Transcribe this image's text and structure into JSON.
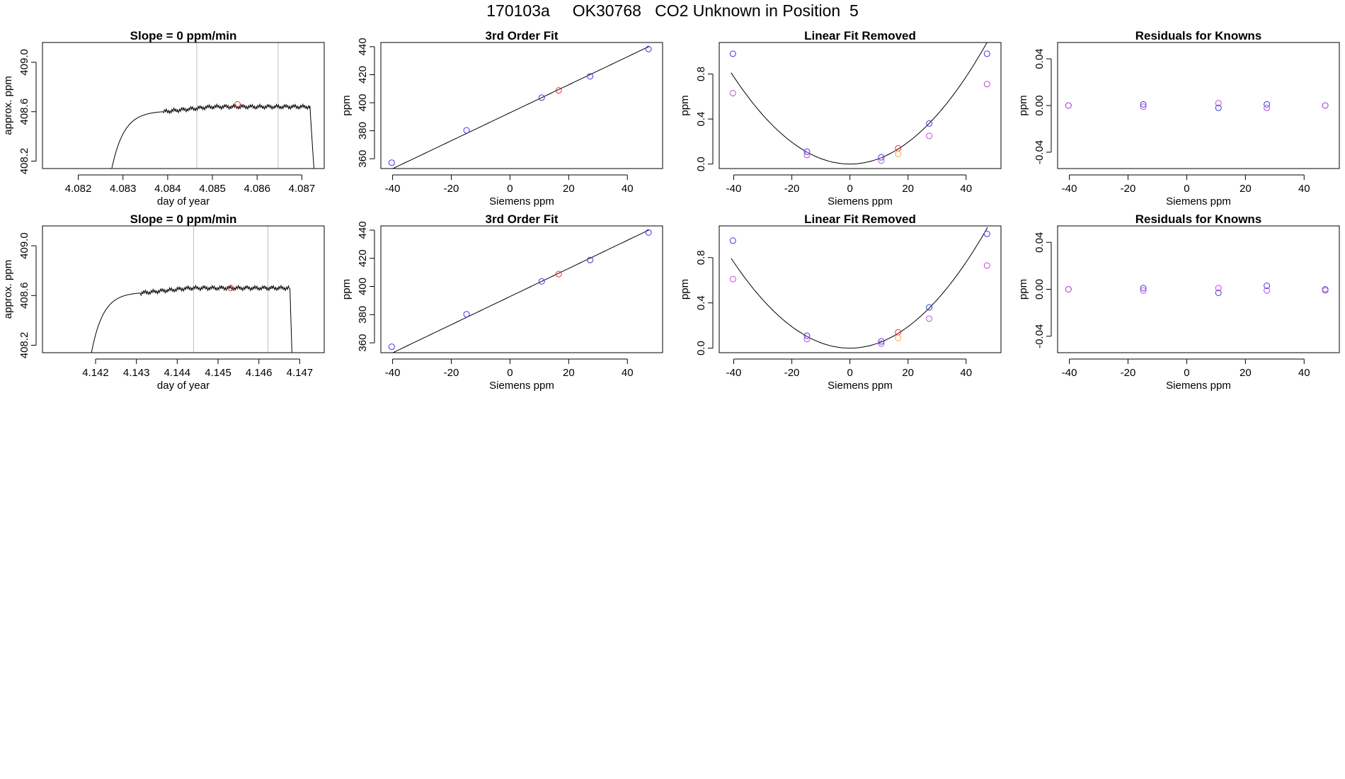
{
  "figure": {
    "title": "170103a     OK30768   CO2 Unknown in Position  5",
    "colors": {
      "line": "#000000",
      "frame": "#000000",
      "vline": "#bebebe",
      "red": "#e8312f",
      "blue": "#3a3adf",
      "violet": "#c14ad8",
      "orange": "#ffa533"
    }
  },
  "chart_data": [
    {
      "type": "line",
      "row": 0,
      "col": 0,
      "title": "Slope =  0  ppm/min",
      "xlabel": "day of year",
      "ylabel": "approx. ppm",
      "xlim": [
        4.0812,
        4.0875
      ],
      "ylim": [
        408.14,
        409.16
      ],
      "xticks": [
        4.082,
        4.083,
        4.084,
        4.085,
        4.086,
        4.087
      ],
      "xtick_labels": [
        "4.082",
        "4.083",
        "4.084",
        "4.085",
        "4.086",
        "4.087"
      ],
      "yticks": [
        408.2,
        408.6,
        409.0
      ],
      "ytick_labels": [
        "408.2",
        "408.6",
        "409.0"
      ],
      "trace": {
        "start": 4.08275,
        "rise_end": 4.0839,
        "end_plateau": 4.08718,
        "end": 4.08727,
        "base": 408.14,
        "level": 408.64,
        "rise_to": 408.6
      },
      "vlines": [
        4.08465,
        4.08647
      ],
      "marker": {
        "x": 4.08556,
        "y": 408.66,
        "color": "red"
      }
    },
    {
      "type": "line",
      "row": 1,
      "col": 0,
      "title": "Slope =  0  ppm/min",
      "xlabel": "day of year",
      "ylabel": "approx. ppm",
      "xlim": [
        4.1407,
        4.1476
      ],
      "ylim": [
        408.14,
        409.16
      ],
      "xticks": [
        4.142,
        4.143,
        4.144,
        4.145,
        4.146,
        4.147
      ],
      "xtick_labels": [
        "4.142",
        "4.143",
        "4.144",
        "4.145",
        "4.146",
        "4.147"
      ],
      "yticks": [
        408.2,
        408.6,
        409.0
      ],
      "ytick_labels": [
        "408.2",
        "408.6",
        "409.0"
      ],
      "trace": {
        "start": 4.1419,
        "rise_end": 4.1431,
        "end_plateau": 4.14676,
        "end": 4.14681,
        "base": 408.14,
        "level": 408.66,
        "rise_to": 408.62
      },
      "vlines": [
        4.1444,
        4.14622
      ],
      "marker": {
        "x": 4.14531,
        "y": 408.66,
        "color": "red"
      }
    },
    {
      "type": "scatter",
      "row": 0,
      "col": 1,
      "title": "3rd Order Fit",
      "xlabel": "Siemens ppm",
      "ylabel": "ppm",
      "xlim": [
        -44,
        52
      ],
      "ylim": [
        353,
        443
      ],
      "xticks": [
        -40,
        -20,
        0,
        20,
        40
      ],
      "xtick_labels": [
        "-40",
        "-20",
        "0",
        "20",
        "40"
      ],
      "yticks": [
        360,
        380,
        400,
        420,
        440
      ],
      "ytick_labels": [
        "360",
        "380",
        "400",
        "420",
        "440"
      ],
      "fit": {
        "kind": "poly",
        "coef": [
          392.84,
          0.9985,
          0,
          0
        ],
        "from": -40.5,
        "to": 47.5
      },
      "series": [
        {
          "color": "blue",
          "x": [
            -40.3,
            -14.8,
            10.8,
            27.3,
            47.2
          ],
          "y": [
            357.2,
            380.3,
            403.6,
            418.8,
            438.3
          ]
        },
        {
          "color": "red",
          "x": [
            16.6
          ],
          "y": [
            408.8
          ]
        }
      ]
    },
    {
      "type": "scatter",
      "row": 1,
      "col": 1,
      "title": "3rd Order Fit",
      "xlabel": "Siemens ppm",
      "ylabel": "ppm",
      "xlim": [
        -44,
        52
      ],
      "ylim": [
        353,
        443
      ],
      "xticks": [
        -40,
        -20,
        0,
        20,
        40
      ],
      "xtick_labels": [
        "-40",
        "-20",
        "0",
        "20",
        "40"
      ],
      "yticks": [
        360,
        380,
        400,
        420,
        440
      ],
      "ytick_labels": [
        "360",
        "380",
        "400",
        "420",
        "440"
      ],
      "fit": {
        "kind": "poly",
        "coef": [
          392.84,
          0.9985,
          0,
          0
        ],
        "from": -40.5,
        "to": 47.5
      },
      "series": [
        {
          "color": "blue",
          "x": [
            -40.3,
            -14.8,
            10.8,
            27.3,
            47.2
          ],
          "y": [
            357.2,
            380.3,
            403.6,
            418.8,
            438.3
          ]
        },
        {
          "color": "red",
          "x": [
            16.6
          ],
          "y": [
            408.8
          ]
        }
      ]
    },
    {
      "type": "scatter",
      "row": 0,
      "col": 2,
      "title": "Linear Fit Removed",
      "xlabel": "Siemens ppm",
      "ylabel": "ppm",
      "xlim": [
        -45,
        52
      ],
      "ylim": [
        -0.04,
        1.08
      ],
      "xticks": [
        -40,
        -20,
        0,
        20,
        40
      ],
      "xtick_labels": [
        "-40",
        "-20",
        "0",
        "20",
        "40"
      ],
      "yticks": [
        0.0,
        0.4,
        0.8
      ],
      "ytick_labels": [
        "0.0",
        "0.4",
        "0.8"
      ],
      "fit": {
        "kind": "poly",
        "coef": [
          0,
          0,
          0.000485,
          0
        ],
        "from": -40.9,
        "to": 47.4
      },
      "series": [
        {
          "color": "blue",
          "x": [
            -40.3,
            -14.8,
            10.8,
            27.3,
            47.2
          ],
          "y": [
            0.98,
            0.11,
            0.06,
            0.36,
            0.98
          ]
        },
        {
          "color": "violet",
          "x": [
            -40.3,
            -14.8,
            10.8,
            27.3,
            47.2
          ],
          "y": [
            0.63,
            0.08,
            0.03,
            0.25,
            0.71
          ]
        },
        {
          "color": "red",
          "x": [
            16.6
          ],
          "y": [
            0.14
          ]
        },
        {
          "color": "orange",
          "x": [
            16.6
          ],
          "y": [
            0.09
          ]
        }
      ]
    },
    {
      "type": "scatter",
      "row": 1,
      "col": 2,
      "title": "Linear Fit Removed",
      "xlabel": "Siemens ppm",
      "ylabel": "ppm",
      "xlim": [
        -45,
        52
      ],
      "ylim": [
        -0.04,
        1.08
      ],
      "xticks": [
        -40,
        -20,
        0,
        20,
        40
      ],
      "xtick_labels": [
        "-40",
        "-20",
        "0",
        "20",
        "40"
      ],
      "yticks": [
        0.0,
        0.4,
        0.8
      ],
      "ytick_labels": [
        "0.0",
        "0.4",
        "0.8"
      ],
      "fit": {
        "kind": "poly",
        "coef": [
          0,
          0,
          0.000475,
          0
        ],
        "from": -40.9,
        "to": 47.4
      },
      "series": [
        {
          "color": "blue",
          "x": [
            -40.3,
            -14.8,
            10.8,
            27.3,
            47.2
          ],
          "y": [
            0.95,
            0.11,
            0.06,
            0.36,
            1.01
          ]
        },
        {
          "color": "violet",
          "x": [
            -40.3,
            -14.8,
            10.8,
            27.3,
            47.2
          ],
          "y": [
            0.61,
            0.08,
            0.04,
            0.26,
            0.73
          ]
        },
        {
          "color": "red",
          "x": [
            16.6
          ],
          "y": [
            0.14
          ]
        },
        {
          "color": "orange",
          "x": [
            16.6
          ],
          "y": [
            0.09
          ]
        }
      ]
    },
    {
      "type": "scatter",
      "row": 0,
      "col": 3,
      "title": "Residuals for Knowns",
      "xlabel": "Siemens ppm",
      "ylabel": "ppm",
      "xlim": [
        -44,
        52
      ],
      "ylim": [
        -0.054,
        0.054
      ],
      "xticks": [
        -40,
        -20,
        0,
        20,
        40
      ],
      "xtick_labels": [
        "-40",
        "-20",
        "0",
        "20",
        "40"
      ],
      "yticks": [
        -0.04,
        0.0,
        0.04
      ],
      "ytick_labels": [
        "-0.04",
        "0.00",
        "0.04"
      ],
      "series": [
        {
          "color": "blue",
          "x": [
            -40.3,
            -14.8,
            10.8,
            27.3,
            47.2
          ],
          "y": [
            0.0,
            0.001,
            -0.002,
            0.001,
            0.0
          ]
        },
        {
          "color": "violet",
          "x": [
            -40.3,
            -14.8,
            10.8,
            27.3,
            47.2
          ],
          "y": [
            0.0,
            -0.001,
            0.002,
            -0.002,
            0.0
          ]
        }
      ]
    },
    {
      "type": "scatter",
      "row": 1,
      "col": 3,
      "title": "Residuals for Knowns",
      "xlabel": "Siemens ppm",
      "ylabel": "ppm",
      "xlim": [
        -44,
        52
      ],
      "ylim": [
        -0.054,
        0.054
      ],
      "xticks": [
        -40,
        -20,
        0,
        20,
        40
      ],
      "xtick_labels": [
        "-40",
        "-20",
        "0",
        "20",
        "40"
      ],
      "yticks": [
        -0.04,
        0.0,
        0.04
      ],
      "ytick_labels": [
        "-0.04",
        "0.00",
        "0.04"
      ],
      "series": [
        {
          "color": "blue",
          "x": [
            -40.3,
            -14.8,
            10.8,
            27.3,
            47.2
          ],
          "y": [
            0.0,
            0.001,
            -0.003,
            0.003,
            0.0
          ]
        },
        {
          "color": "violet",
          "x": [
            -40.3,
            -14.8,
            10.8,
            27.3,
            47.2
          ],
          "y": [
            0.0,
            -0.001,
            0.001,
            -0.001,
            -0.001
          ]
        }
      ]
    }
  ]
}
